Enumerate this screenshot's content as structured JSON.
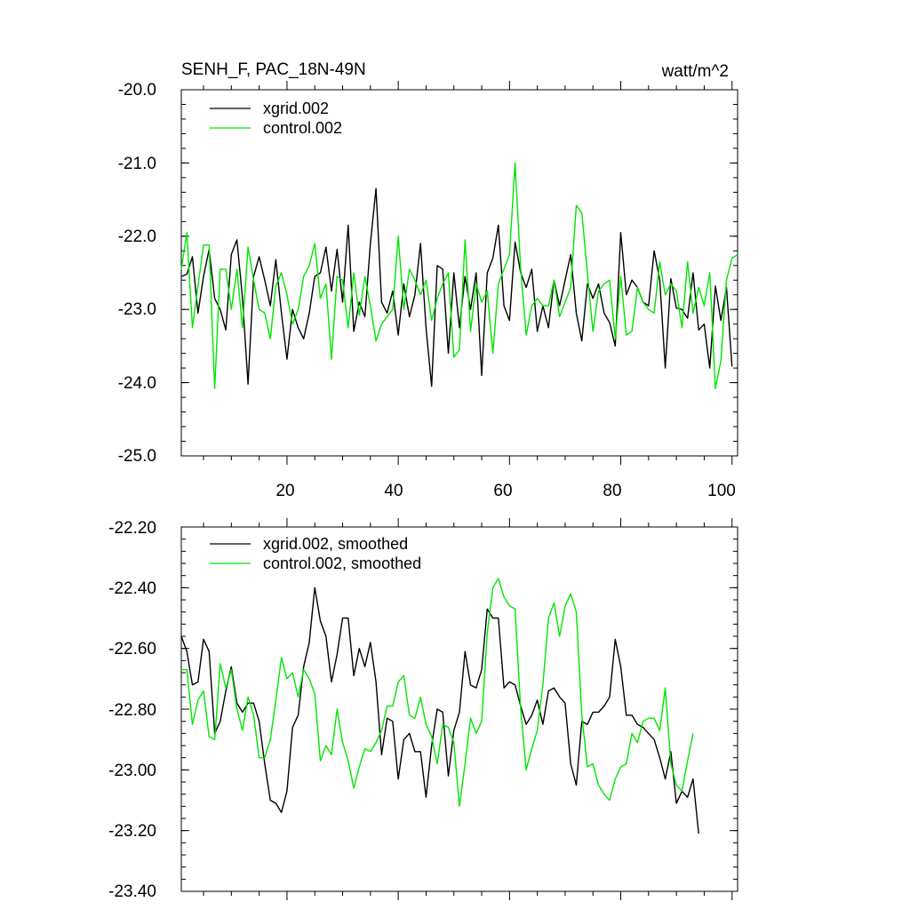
{
  "chart_data": [
    {
      "type": "line",
      "title": "SENH_F, PAC_18N-49N",
      "units": "watt/m^2",
      "xlim": [
        1,
        101
      ],
      "ylim": [
        -25.0,
        -20.0
      ],
      "xticks": [
        20,
        40,
        60,
        80,
        100
      ],
      "xtick_labels": [
        "20",
        "40",
        "60",
        "80",
        "100"
      ],
      "yticks": [
        -25.0,
        -24.0,
        -23.0,
        -22.0,
        -21.0,
        -20.0
      ],
      "ytick_labels": [
        "-25.0",
        "-24.0",
        "-23.0",
        "-22.0",
        "-21.0",
        "-20.0"
      ],
      "legend": [
        "xgrid.002",
        "control.002"
      ],
      "series": [
        {
          "name": "xgrid.002",
          "color": "#000000",
          "values": [
            -22.55,
            -22.52,
            -22.28,
            -23.05,
            -22.55,
            -22.18,
            -22.85,
            -23.0,
            -23.28,
            -22.25,
            -22.05,
            -22.85,
            -24.02,
            -22.55,
            -22.28,
            -22.6,
            -22.95,
            -22.32,
            -23.05,
            -23.68,
            -23.0,
            -23.25,
            -23.4,
            -23.05,
            -22.55,
            -22.5,
            -22.15,
            -22.75,
            -22.18,
            -22.9,
            -21.85,
            -23.3,
            -22.9,
            -23.1,
            -22.1,
            -21.35,
            -22.9,
            -23.05,
            -22.75,
            -23.35,
            -22.65,
            -23.1,
            -22.8,
            -22.1,
            -23.25,
            -24.05,
            -22.4,
            -22.45,
            -23.6,
            -22.5,
            -23.25,
            -22.55,
            -23.0,
            -22.5,
            -23.9,
            -22.5,
            -22.3,
            -21.85,
            -22.95,
            -23.15,
            -22.08,
            -22.5,
            -22.7,
            -22.45,
            -23.3,
            -22.95,
            -23.25,
            -22.6,
            -22.95,
            -22.6,
            -22.25,
            -23.05,
            -23.43,
            -22.65,
            -22.85,
            -22.65,
            -23.05,
            -23.18,
            -23.5,
            -21.95,
            -22.8,
            -22.6,
            -22.7,
            -22.9,
            -22.95,
            -22.2,
            -22.6,
            -23.8,
            -22.58,
            -22.98,
            -23.0,
            -23.12,
            -22.5,
            -23.28,
            -23.2,
            -23.8,
            -22.68,
            -23.15,
            -22.7,
            -23.78
          ]
        },
        {
          "name": "control.002",
          "color": "#00e600",
          "values": [
            -22.45,
            -21.95,
            -23.25,
            -22.68,
            -22.12,
            -22.12,
            -24.08,
            -22.45,
            -22.45,
            -23.0,
            -22.45,
            -23.25,
            -22.15,
            -22.6,
            -23.0,
            -23.05,
            -23.4,
            -22.68,
            -22.5,
            -22.8,
            -23.2,
            -23.0,
            -22.55,
            -22.4,
            -22.1,
            -22.85,
            -22.65,
            -23.68,
            -22.55,
            -22.6,
            -23.25,
            -22.5,
            -23.08,
            -22.55,
            -22.95,
            -23.43,
            -23.2,
            -23.1,
            -23.0,
            -22.0,
            -23.0,
            -22.45,
            -22.6,
            -22.8,
            -22.6,
            -23.15,
            -22.85,
            -22.65,
            -22.5,
            -23.65,
            -23.55,
            -22.05,
            -23.3,
            -22.65,
            -22.9,
            -22.75,
            -23.6,
            -22.65,
            -22.45,
            -22.25,
            -21.0,
            -22.45,
            -23.35,
            -22.95,
            -22.85,
            -22.95,
            -22.95,
            -22.6,
            -23.1,
            -22.9,
            -22.7,
            -21.58,
            -21.68,
            -22.5,
            -23.3,
            -22.75,
            -22.65,
            -22.6,
            -23.4,
            -22.55,
            -23.35,
            -23.3,
            -22.7,
            -22.9,
            -23.0,
            -23.05,
            -22.35,
            -22.8,
            -22.65,
            -22.75,
            -23.25,
            -22.35,
            -23.05,
            -22.7,
            -22.95,
            -22.5,
            -24.08,
            -23.7,
            -22.6,
            -22.3,
            -22.25
          ]
        }
      ]
    },
    {
      "type": "line",
      "xlim": [
        1,
        101
      ],
      "ylim": [
        -23.4,
        -22.2
      ],
      "xticks": [
        20,
        40,
        60,
        80,
        100
      ],
      "yticks": [
        -23.4,
        -23.2,
        -23.0,
        -22.8,
        -22.6,
        -22.4,
        -22.2
      ],
      "ytick_labels": [
        "-23.40",
        "-23.20",
        "-23.00",
        "-22.80",
        "-22.60",
        "-22.40",
        "-22.20"
      ],
      "legend": [
        "xgrid.002, smoothed",
        "control.002, smoothed"
      ],
      "series": [
        {
          "name": "xgrid.002, smoothed",
          "color": "#000000",
          "values": [
            -22.56,
            -22.61,
            -22.72,
            -22.71,
            -22.57,
            -22.61,
            -22.88,
            -22.84,
            -22.74,
            -22.66,
            -22.78,
            -22.81,
            -22.78,
            -22.78,
            -22.84,
            -22.98,
            -23.1,
            -23.11,
            -23.14,
            -23.07,
            -22.86,
            -22.82,
            -22.66,
            -22.58,
            -22.4,
            -22.51,
            -22.56,
            -22.71,
            -22.62,
            -22.5,
            -22.5,
            -22.69,
            -22.6,
            -22.66,
            -22.58,
            -22.71,
            -22.95,
            -22.83,
            -22.84,
            -23.03,
            -22.9,
            -22.88,
            -22.94,
            -22.94,
            -23.09,
            -22.92,
            -22.8,
            -22.81,
            -23.02,
            -22.87,
            -22.81,
            -22.61,
            -22.72,
            -22.73,
            -22.67,
            -22.47,
            -22.5,
            -22.5,
            -22.73,
            -22.71,
            -22.72,
            -22.79,
            -22.85,
            -22.82,
            -22.77,
            -22.85,
            -22.74,
            -22.73,
            -22.76,
            -22.78,
            -22.98,
            -23.05,
            -22.84,
            -22.85,
            -22.81,
            -22.81,
            -22.79,
            -22.76,
            -22.57,
            -22.66,
            -22.82,
            -22.82,
            -22.85,
            -22.86,
            -22.88,
            -22.9,
            -22.96,
            -23.03,
            -22.94,
            -23.11,
            -23.07,
            -23.09,
            -23.03,
            -23.21
          ]
        },
        {
          "name": "control.002, smoothed",
          "color": "#00e600",
          "values": [
            -22.67,
            -22.67,
            -22.85,
            -22.77,
            -22.74,
            -22.89,
            -22.9,
            -22.65,
            -22.73,
            -22.67,
            -22.8,
            -22.87,
            -22.76,
            -22.82,
            -22.96,
            -22.96,
            -22.9,
            -22.77,
            -22.63,
            -22.7,
            -22.68,
            -22.76,
            -22.67,
            -22.7,
            -22.75,
            -22.97,
            -22.92,
            -22.95,
            -22.8,
            -22.91,
            -22.97,
            -23.06,
            -22.99,
            -22.93,
            -22.94,
            -22.91,
            -22.87,
            -22.79,
            -22.79,
            -22.71,
            -22.69,
            -22.82,
            -22.83,
            -22.76,
            -22.85,
            -22.89,
            -22.98,
            -22.85,
            -22.86,
            -22.91,
            -23.12,
            -22.98,
            -22.83,
            -22.88,
            -22.84,
            -22.55,
            -22.4,
            -22.37,
            -22.43,
            -22.46,
            -22.47,
            -22.8,
            -23.0,
            -22.93,
            -22.87,
            -22.72,
            -22.5,
            -22.45,
            -22.56,
            -22.46,
            -22.42,
            -22.48,
            -22.82,
            -22.99,
            -22.98,
            -23.05,
            -23.08,
            -23.1,
            -23.03,
            -22.99,
            -22.98,
            -22.88,
            -22.91,
            -22.84,
            -22.83,
            -22.83,
            -22.87,
            -22.73,
            -22.98,
            -23.05,
            -23.07,
            -22.97,
            -22.88
          ]
        }
      ]
    }
  ]
}
